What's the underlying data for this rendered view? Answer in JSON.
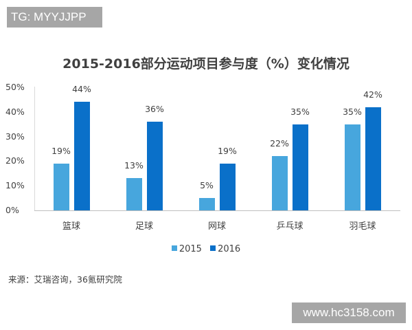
{
  "watermark_top": "TG: MYYJJPP",
  "watermark_bottom": "www.hc3158.com",
  "source": "来源：艾瑞咨询，36氪研究院",
  "colors": {
    "s2015": "#47a6dd",
    "s2016": "#0a70c9",
    "axis": "#bfbfbf",
    "text": "#404040"
  },
  "chart_data": {
    "type": "bar",
    "title": "2015-2016部分运动项目参与度（%）变化情况",
    "xlabel": "",
    "ylabel": "",
    "ylim": [
      0,
      50
    ],
    "yticks": [
      "0%",
      "10%",
      "20%",
      "30%",
      "40%",
      "50%"
    ],
    "grid": false,
    "legend_position": "bottom",
    "categories": [
      "篮球",
      "足球",
      "网球",
      "乒乓球",
      "羽毛球"
    ],
    "series": [
      {
        "name": "2015",
        "values": [
          19,
          13,
          5,
          22,
          35
        ],
        "labels": [
          "19%",
          "13%",
          "5%",
          "22%",
          "35%"
        ]
      },
      {
        "name": "2016",
        "values": [
          44,
          36,
          19,
          35,
          42
        ],
        "labels": [
          "44%",
          "36%",
          "19%",
          "35%",
          "42%"
        ]
      }
    ]
  }
}
